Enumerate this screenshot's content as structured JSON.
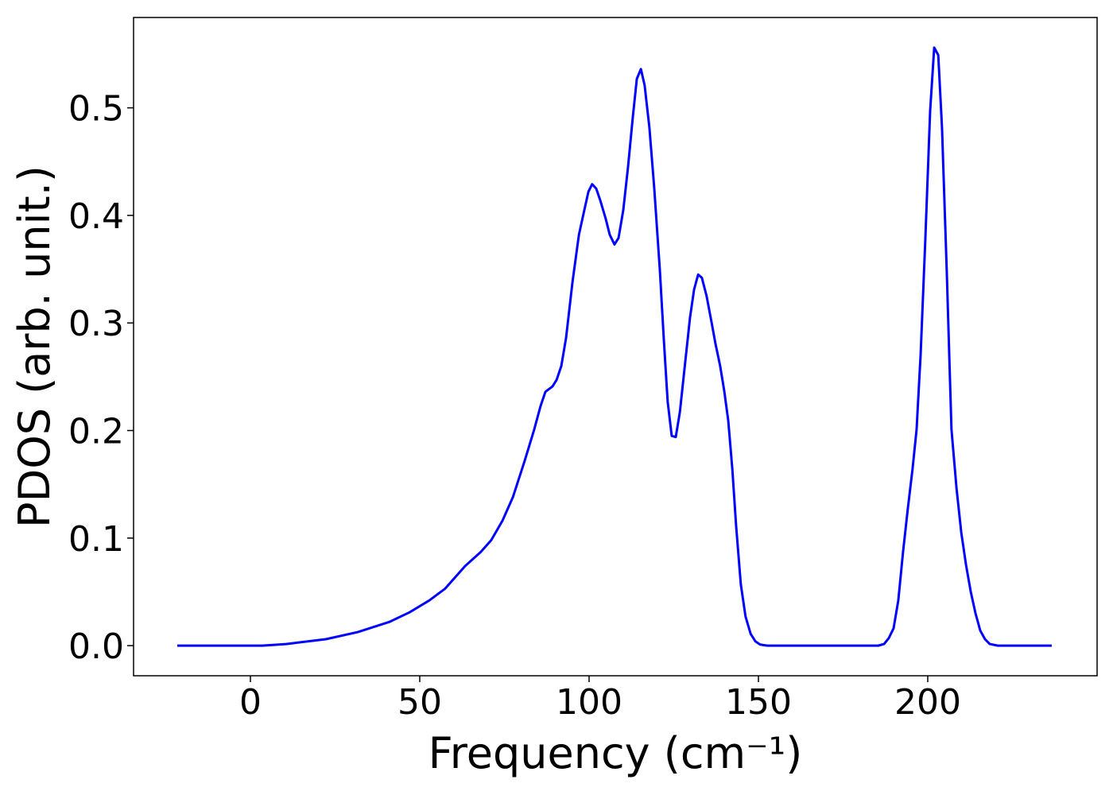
{
  "chart_data": {
    "type": "line",
    "xlabel": "Frequency (cm⁻¹)",
    "ylabel": "PDOS (arb. unit.)",
    "x": [
      -21.6,
      3.5,
      10.6,
      22.3,
      31.7,
      41,
      47,
      52.8,
      57.5,
      63.4,
      68,
      71.1,
      74.4,
      77.5,
      81,
      83.8,
      85.7,
      87.1,
      89.2,
      90.4,
      91.8,
      93.2,
      95.1,
      97,
      98.6,
      99.8,
      100.9,
      102.1,
      103.3,
      104.9,
      106.1,
      107.5,
      108.7,
      110.1,
      111.5,
      112.9,
      114.1,
      115.3,
      116.4,
      117.8,
      119.2,
      120.9,
      122.1,
      123.2,
      124.4,
      125.6,
      126.8,
      128.4,
      129.8,
      131,
      132.2,
      133.3,
      134.7,
      136.2,
      137.3,
      138.7,
      139.9,
      141.1,
      142.3,
      143.4,
      144.8,
      146.2,
      147.7,
      149.1,
      150.5,
      152.6,
      185.4,
      187.1,
      188.5,
      189.9,
      191.3,
      192.7,
      194.1,
      195.5,
      196.7,
      197.9,
      199.3,
      200.7,
      201.9,
      203.1,
      204.2,
      205.6,
      207,
      208.5,
      209.9,
      211.3,
      212.7,
      214.1,
      215.5,
      216.9,
      218.3,
      220.7,
      236.6
    ],
    "series": [
      {
        "name": "PDOS",
        "color": "#0000ff",
        "values": [
          0,
          0,
          0.0015,
          0.006,
          0.0126,
          0.022,
          0.031,
          0.042,
          0.053,
          0.074,
          0.087,
          0.098,
          0.116,
          0.138,
          0.172,
          0.201,
          0.223,
          0.236,
          0.241,
          0.247,
          0.26,
          0.286,
          0.338,
          0.382,
          0.405,
          0.422,
          0.429,
          0.425,
          0.414,
          0.397,
          0.382,
          0.373,
          0.379,
          0.405,
          0.445,
          0.491,
          0.527,
          0.536,
          0.521,
          0.482,
          0.427,
          0.349,
          0.283,
          0.227,
          0.195,
          0.194,
          0.217,
          0.264,
          0.305,
          0.331,
          0.345,
          0.342,
          0.325,
          0.3,
          0.281,
          0.26,
          0.237,
          0.209,
          0.164,
          0.112,
          0.057,
          0.027,
          0.011,
          0.004,
          0.001,
          0,
          0,
          0.0015,
          0.007,
          0.016,
          0.042,
          0.087,
          0.127,
          0.164,
          0.201,
          0.271,
          0.379,
          0.497,
          0.556,
          0.549,
          0.482,
          0.349,
          0.201,
          0.146,
          0.105,
          0.075,
          0.05,
          0.03,
          0.014,
          0.006,
          0.0015,
          0,
          0
        ]
      }
    ],
    "xlim": [
      -34.5,
      250
    ],
    "ylim": [
      -0.028,
      0.584
    ],
    "xticks": [
      0,
      50,
      100,
      150,
      200
    ],
    "yticks": [
      {
        "value": 0,
        "label": "0.0"
      },
      0.1,
      0.2,
      0.3,
      0.4,
      0.5
    ],
    "grid": false
  }
}
